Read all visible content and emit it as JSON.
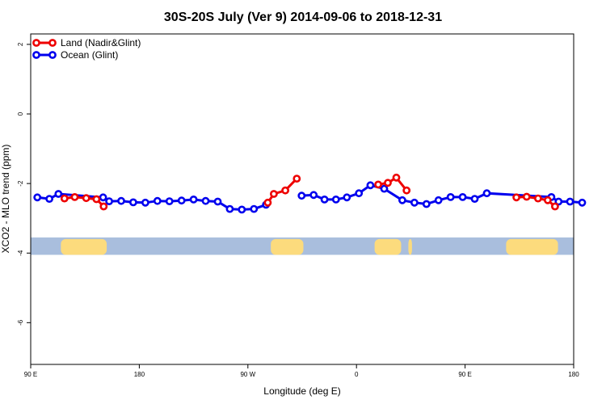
{
  "chart_data": {
    "type": "line",
    "title": "30S-20S July (Ver 9)   2014-09-06 to 2018-12-31",
    "xlabel": "Longitude (deg E)",
    "ylabel": "XCO2 - MLO trend (ppm)",
    "xlim": [
      90,
      540
    ],
    "ylim": [
      -7.2,
      2.3
    ],
    "x_ticks": [
      {
        "value": 90,
        "label": "90 E"
      },
      {
        "value": 180,
        "label": "180"
      },
      {
        "value": 270,
        "label": "90 W"
      },
      {
        "value": 360,
        "label": "0"
      },
      {
        "value": 450,
        "label": "90 E"
      },
      {
        "value": 540,
        "label": "180"
      }
    ],
    "y_ticks": [
      {
        "value": 2,
        "label": "2"
      },
      {
        "value": 0,
        "label": "0"
      },
      {
        "value": -2,
        "label": "-2"
      },
      {
        "value": -4,
        "label": "-4"
      },
      {
        "value": -6,
        "label": "-6"
      }
    ],
    "legend_position": "top-left",
    "series": [
      {
        "name": "Land (Nadir&Glint)",
        "color": "#ee0000",
        "segments": [
          [
            [
              118.0,
              -2.43
            ],
            [
              126.5,
              -2.39
            ],
            [
              136.0,
              -2.42
            ],
            [
              144.5,
              -2.45
            ],
            [
              150.5,
              -2.66
            ]
          ],
          [
            [
              286.5,
              -2.55
            ],
            [
              291.5,
              -2.3
            ],
            [
              301.0,
              -2.2
            ],
            [
              310.5,
              -1.86
            ]
          ],
          [
            [
              378.0,
              -2.03
            ],
            [
              386.0,
              -1.98
            ],
            [
              393.0,
              -1.83
            ],
            [
              401.5,
              -2.2
            ]
          ],
          [
            [
              492.5,
              -2.4
            ],
            [
              501.0,
              -2.38
            ],
            [
              510.5,
              -2.43
            ],
            [
              518.5,
              -2.48
            ],
            [
              524.5,
              -2.66
            ]
          ]
        ]
      },
      {
        "name": "Ocean (Glint)",
        "color": "#0000ee",
        "segments": [
          [
            [
              95.5,
              -2.4
            ],
            [
              105.5,
              -2.44
            ],
            [
              113.0,
              -2.3
            ],
            [
              150.0,
              -2.4
            ],
            [
              155.0,
              -2.51
            ],
            [
              165.0,
              -2.5
            ],
            [
              175.0,
              -2.54
            ],
            [
              185.0,
              -2.55
            ],
            [
              195.0,
              -2.5
            ],
            [
              205.0,
              -2.51
            ],
            [
              215.0,
              -2.49
            ],
            [
              225.0,
              -2.46
            ],
            [
              235.0,
              -2.5
            ],
            [
              245.0,
              -2.52
            ],
            [
              255.0,
              -2.73
            ],
            [
              265.0,
              -2.75
            ],
            [
              275.0,
              -2.73
            ],
            [
              285.0,
              -2.61
            ]
          ],
          [
            [
              314.5,
              -2.35
            ],
            [
              324.5,
              -2.33
            ],
            [
              333.5,
              -2.46
            ],
            [
              343.0,
              -2.46
            ],
            [
              352.0,
              -2.4
            ],
            [
              362.0,
              -2.28
            ],
            [
              371.5,
              -2.05
            ],
            [
              383.0,
              -2.15
            ],
            [
              398.0,
              -2.48
            ],
            [
              408.0,
              -2.55
            ],
            [
              418.0,
              -2.59
            ],
            [
              428.0,
              -2.48
            ],
            [
              438.0,
              -2.39
            ],
            [
              448.0,
              -2.39
            ],
            [
              458.0,
              -2.44
            ],
            [
              468.0,
              -2.28
            ],
            [
              521.5,
              -2.39
            ],
            [
              527.5,
              -2.52
            ],
            [
              537.0,
              -2.52
            ],
            [
              547.0,
              -2.55
            ]
          ]
        ]
      }
    ],
    "background_band": {
      "y_range": [
        -3.55,
        -4.05
      ],
      "ocean_color": "#a9bedd",
      "land_color": "#fcdb7d",
      "land_ranges": [
        [
          115,
          153
        ],
        [
          289,
          316
        ],
        [
          375,
          397
        ],
        [
          403,
          406
        ],
        [
          484,
          527
        ]
      ]
    }
  }
}
